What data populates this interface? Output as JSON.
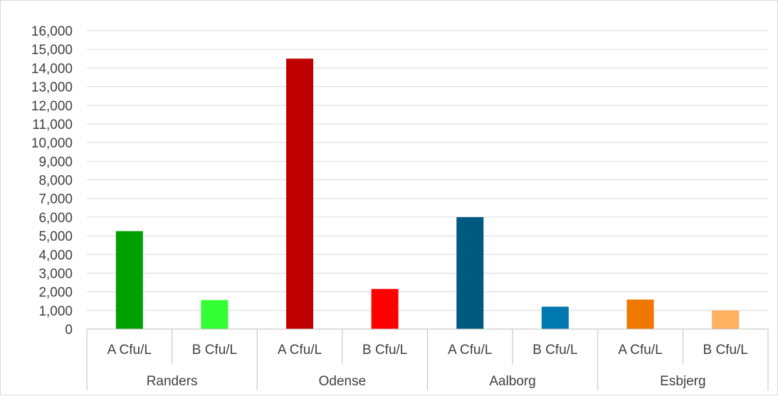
{
  "chart_data": {
    "type": "bar",
    "title": "",
    "xlabel": "",
    "ylabel": "",
    "ylim": [
      0,
      16000
    ],
    "ytick_step": 1000,
    "ytick_labels": [
      "0",
      "1,000",
      "2,000",
      "3,000",
      "4,000",
      "5,000",
      "6,000",
      "7,000",
      "8,000",
      "9,000",
      "10,000",
      "11,000",
      "12,000",
      "13,000",
      "14,000",
      "15,000",
      "16,000"
    ],
    "grid": true,
    "legend": "none",
    "groups": [
      {
        "name": "Randers",
        "bars": [
          {
            "label": "A Cfu/L",
            "value": 5250,
            "color": "#00a000"
          },
          {
            "label": "B Cfu/L",
            "value": 1550,
            "color": "#33ff33"
          }
        ]
      },
      {
        "name": "Odense",
        "bars": [
          {
            "label": "A Cfu/L",
            "value": 14500,
            "color": "#c00000"
          },
          {
            "label": "B Cfu/L",
            "value": 2150,
            "color": "#ff0000"
          }
        ]
      },
      {
        "name": "Aalborg",
        "bars": [
          {
            "label": "A Cfu/L",
            "value": 6000,
            "color": "#005a80"
          },
          {
            "label": "B Cfu/L",
            "value": 1200,
            "color": "#0078b0"
          }
        ]
      },
      {
        "name": "Esbjerg",
        "bars": [
          {
            "label": "A Cfu/L",
            "value": 1580,
            "color": "#f07800"
          },
          {
            "label": "B Cfu/L",
            "value": 1000,
            "color": "#ffb060"
          }
        ]
      }
    ],
    "colors": {
      "gridline": "#d9d9d9",
      "axis": "#bfbfbf",
      "text": "#404040"
    }
  }
}
